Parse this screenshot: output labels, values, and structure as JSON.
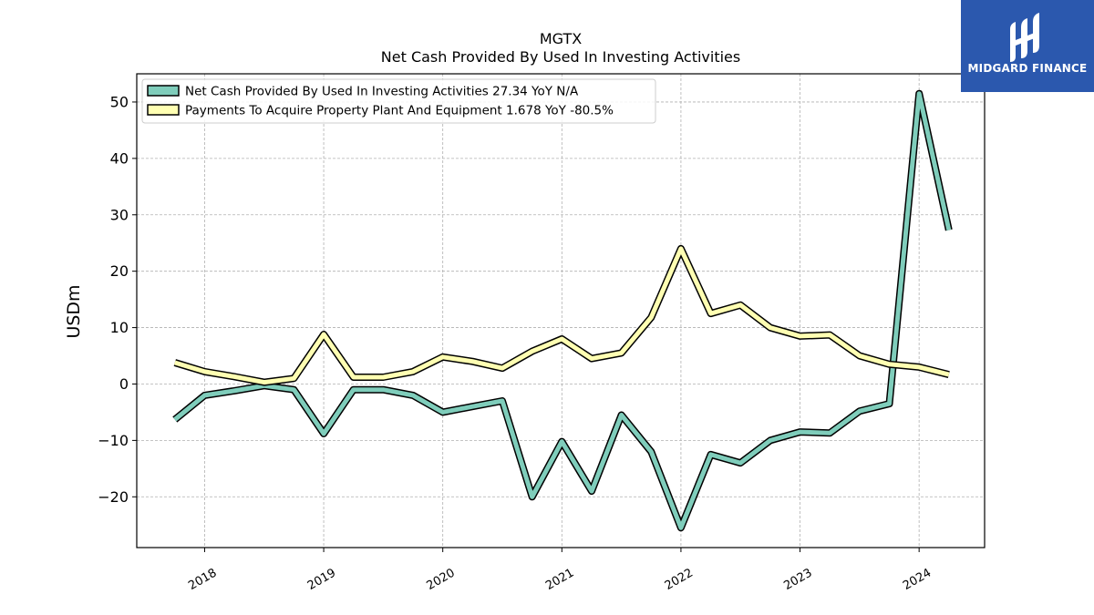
{
  "chart_data": {
    "type": "line",
    "title": "MGTX",
    "subtitle": "Net Cash Provided By Used In Investing Activities",
    "ylabel": "USDm",
    "xlabel": "",
    "ylim": [
      -29,
      55
    ],
    "xlim": [
      2017.43,
      2024.55
    ],
    "yticks": [
      -20,
      -10,
      0,
      10,
      20,
      30,
      40,
      50
    ],
    "ytick_labels": [
      "−20",
      "−10",
      "0",
      "10",
      "20",
      "30",
      "40",
      "50"
    ],
    "xticks": [
      2018,
      2019,
      2020,
      2021,
      2022,
      2023,
      2024
    ],
    "xtick_labels": [
      "2018",
      "2019",
      "2020",
      "2021",
      "2022",
      "2023",
      "2024"
    ],
    "grid": true,
    "legend_position": "top-left",
    "series": [
      {
        "name": "Net Cash Provided By Used In Investing Activities  27.34 YoY N/A",
        "color": "#7fcdbb",
        "x": [
          2017.75,
          2018.0,
          2018.25,
          2018.5,
          2018.75,
          2019.0,
          2019.25,
          2019.5,
          2019.75,
          2020.0,
          2020.25,
          2020.5,
          2020.75,
          2021.0,
          2021.25,
          2021.5,
          2021.75,
          2022.0,
          2022.25,
          2022.5,
          2022.75,
          2023.0,
          2023.25,
          2023.5,
          2023.75,
          2024.0,
          2024.25
        ],
        "y": [
          -6.3,
          -2.0,
          -1.2,
          -0.3,
          -1.0,
          -8.8,
          -1.0,
          -1.0,
          -2.0,
          -5.0,
          -4.0,
          -3.0,
          -20.0,
          -10.2,
          -19.0,
          -5.5,
          -12.0,
          -25.5,
          -12.5,
          -14.0,
          -10.0,
          -8.5,
          -8.7,
          -4.8,
          -3.5,
          51.5,
          27.3
        ]
      },
      {
        "name": "Payments To Acquire Property Plant And Equipment  1.678 YoY -80.5%",
        "color": "#ffffb2",
        "x": [
          2017.75,
          2018.0,
          2018.25,
          2018.5,
          2018.75,
          2019.0,
          2019.25,
          2019.5,
          2019.75,
          2020.0,
          2020.25,
          2020.5,
          2020.75,
          2021.0,
          2021.25,
          2021.5,
          2021.75,
          2022.0,
          2022.25,
          2022.5,
          2022.75,
          2023.0,
          2023.25,
          2023.5,
          2023.75,
          2024.0,
          2024.25
        ],
        "y": [
          3.8,
          2.2,
          1.3,
          0.3,
          1.0,
          8.8,
          1.2,
          1.2,
          2.2,
          4.8,
          4.0,
          2.8,
          5.8,
          8.0,
          4.5,
          5.5,
          11.8,
          24.0,
          12.5,
          14.0,
          10.0,
          8.5,
          8.7,
          5.0,
          3.5,
          3.0,
          1.68
        ]
      }
    ]
  },
  "logo": {
    "text": "MIDGARD FINANCE",
    "background": "#2b58ae"
  }
}
